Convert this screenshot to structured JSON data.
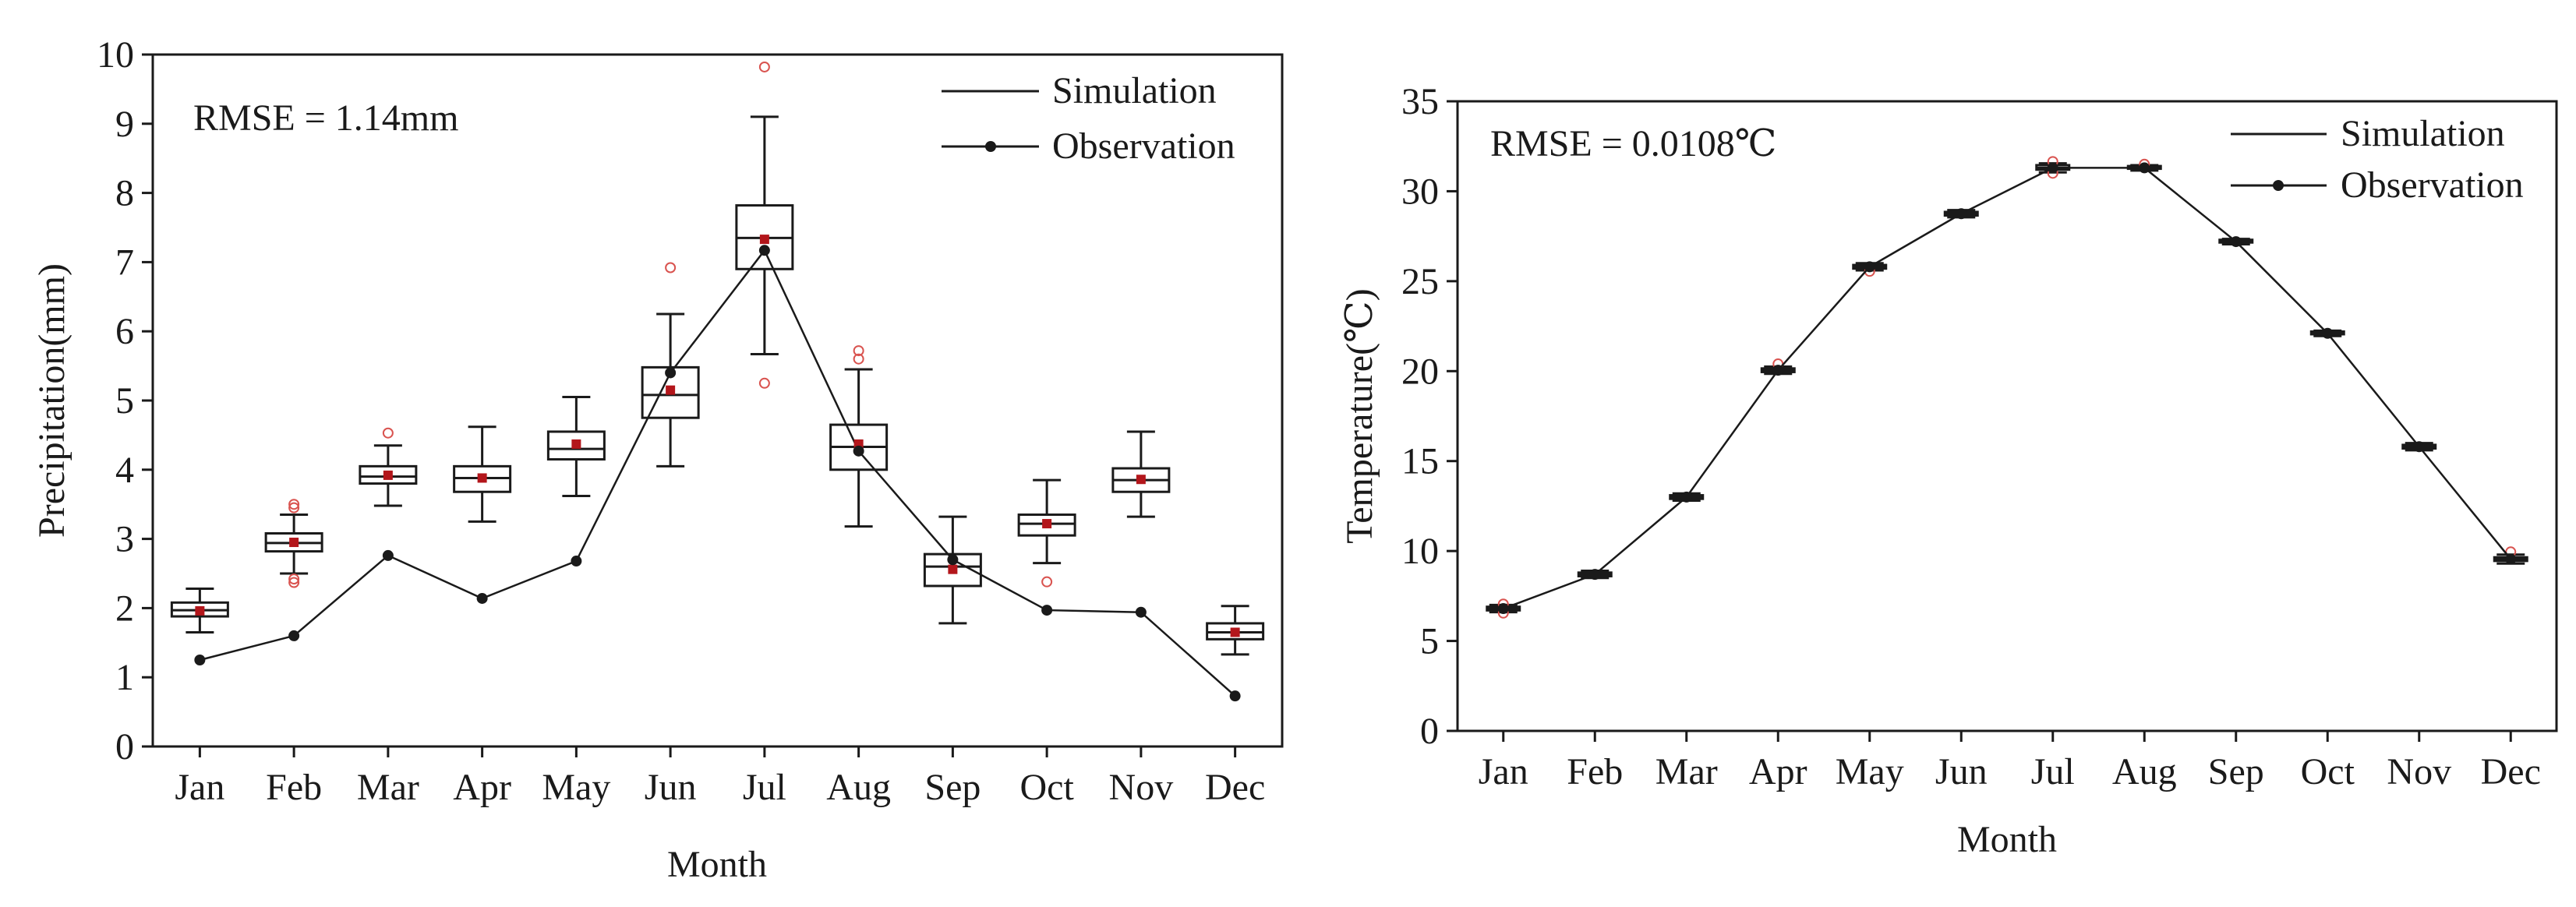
{
  "chart_data": [
    {
      "type": "box",
      "xlabel": "Month",
      "ylabel": "Precipitation(mm)",
      "ylim": [
        0,
        10
      ],
      "yticks": [
        0,
        1,
        2,
        3,
        4,
        5,
        6,
        7,
        8,
        9,
        10
      ],
      "categories": [
        "Jan",
        "Feb",
        "Mar",
        "Apr",
        "May",
        "Jun",
        "Jul",
        "Aug",
        "Sep",
        "Oct",
        "Nov",
        "Dec"
      ],
      "annotation": "RMSE = 1.14mm",
      "legend": {
        "position": "top-right",
        "entries": [
          {
            "label": "Simulation",
            "marker": "line"
          },
          {
            "label": "Observation",
            "marker": "line-dot"
          }
        ]
      },
      "simulation_boxes": [
        {
          "min": 1.65,
          "q1": 1.88,
          "median": 1.97,
          "q3": 2.08,
          "max": 2.28,
          "mean": 1.96,
          "outliers": []
        },
        {
          "min": 2.5,
          "q1": 2.82,
          "median": 2.94,
          "q3": 3.08,
          "max": 3.35,
          "mean": 2.95,
          "outliers": [
            3.5,
            3.45,
            2.42,
            2.37
          ]
        },
        {
          "min": 3.48,
          "q1": 3.8,
          "median": 3.9,
          "q3": 4.05,
          "max": 4.35,
          "mean": 3.92,
          "outliers": [
            4.53
          ]
        },
        {
          "min": 3.25,
          "q1": 3.68,
          "median": 3.88,
          "q3": 4.05,
          "max": 4.62,
          "mean": 3.88,
          "outliers": []
        },
        {
          "min": 3.62,
          "q1": 4.15,
          "median": 4.3,
          "q3": 4.55,
          "max": 5.05,
          "mean": 4.37,
          "outliers": []
        },
        {
          "min": 4.05,
          "q1": 4.75,
          "median": 5.08,
          "q3": 5.48,
          "max": 6.25,
          "mean": 5.15,
          "outliers": [
            6.92
          ]
        },
        {
          "min": 5.67,
          "q1": 6.9,
          "median": 7.35,
          "q3": 7.82,
          "max": 9.1,
          "mean": 7.33,
          "outliers": [
            9.82,
            5.25
          ]
        },
        {
          "min": 3.18,
          "q1": 4.0,
          "median": 4.33,
          "q3": 4.65,
          "max": 5.45,
          "mean": 4.37,
          "outliers": [
            5.72,
            5.6
          ]
        },
        {
          "min": 1.78,
          "q1": 2.32,
          "median": 2.6,
          "q3": 2.78,
          "max": 3.32,
          "mean": 2.56,
          "outliers": []
        },
        {
          "min": 2.65,
          "q1": 3.05,
          "median": 3.22,
          "q3": 3.35,
          "max": 3.85,
          "mean": 3.22,
          "outliers": [
            2.38
          ]
        },
        {
          "min": 3.32,
          "q1": 3.68,
          "median": 3.85,
          "q3": 4.02,
          "max": 4.55,
          "mean": 3.86,
          "outliers": []
        },
        {
          "min": 1.33,
          "q1": 1.55,
          "median": 1.65,
          "q3": 1.78,
          "max": 2.03,
          "mean": 1.65,
          "outliers": []
        }
      ],
      "observation": [
        1.25,
        1.6,
        2.76,
        2.14,
        2.68,
        5.4,
        7.17,
        4.27,
        2.7,
        1.97,
        1.94,
        0.73
      ]
    },
    {
      "type": "box",
      "xlabel": "Month",
      "ylabel": "Temperature(℃)",
      "ylim": [
        0,
        35
      ],
      "yticks": [
        0,
        5,
        10,
        15,
        20,
        25,
        30,
        35
      ],
      "categories": [
        "Jan",
        "Feb",
        "Mar",
        "Apr",
        "May",
        "Jun",
        "Jul",
        "Aug",
        "Sep",
        "Oct",
        "Nov",
        "Dec"
      ],
      "annotation": "RMSE = 0.0108℃",
      "legend": {
        "position": "top-right",
        "entries": [
          {
            "label": "Simulation",
            "marker": "line"
          },
          {
            "label": "Observation",
            "marker": "line-dot"
          }
        ]
      },
      "simulation_boxes": [
        {
          "min": 6.6,
          "q1": 6.7,
          "median": 6.8,
          "q3": 6.9,
          "max": 7.0,
          "mean": 6.8,
          "outliers": [
            6.55,
            7.05
          ]
        },
        {
          "min": 8.5,
          "q1": 8.6,
          "median": 8.7,
          "q3": 8.8,
          "max": 8.9,
          "mean": 8.7,
          "outliers": []
        },
        {
          "min": 12.8,
          "q1": 12.9,
          "median": 13.0,
          "q3": 13.1,
          "max": 13.2,
          "mean": 13.0,
          "outliers": []
        },
        {
          "min": 19.85,
          "q1": 19.95,
          "median": 20.05,
          "q3": 20.15,
          "max": 20.25,
          "mean": 20.05,
          "outliers": [
            20.4
          ]
        },
        {
          "min": 25.6,
          "q1": 25.7,
          "median": 25.8,
          "q3": 25.9,
          "max": 26.0,
          "mean": 25.8,
          "outliers": [
            25.55
          ]
        },
        {
          "min": 28.55,
          "q1": 28.65,
          "median": 28.75,
          "q3": 28.85,
          "max": 28.95,
          "mean": 28.75,
          "outliers": []
        },
        {
          "min": 31.05,
          "q1": 31.2,
          "median": 31.3,
          "q3": 31.45,
          "max": 31.55,
          "mean": 31.3,
          "outliers": [
            31.0,
            31.65
          ]
        },
        {
          "min": 31.15,
          "q1": 31.25,
          "median": 31.3,
          "q3": 31.4,
          "max": 31.45,
          "mean": 31.3,
          "outliers": [
            31.5
          ]
        },
        {
          "min": 27.05,
          "q1": 27.15,
          "median": 27.2,
          "q3": 27.3,
          "max": 27.35,
          "mean": 27.2,
          "outliers": []
        },
        {
          "min": 21.95,
          "q1": 22.05,
          "median": 22.1,
          "q3": 22.2,
          "max": 22.25,
          "mean": 22.1,
          "outliers": []
        },
        {
          "min": 15.6,
          "q1": 15.7,
          "median": 15.8,
          "q3": 15.9,
          "max": 16.0,
          "mean": 15.8,
          "outliers": []
        },
        {
          "min": 9.3,
          "q1": 9.45,
          "median": 9.55,
          "q3": 9.65,
          "max": 9.8,
          "mean": 9.55,
          "outliers": [
            9.95
          ]
        }
      ],
      "observation": [
        6.8,
        8.7,
        13.0,
        20.05,
        25.8,
        28.75,
        31.3,
        31.3,
        27.2,
        22.1,
        15.8,
        9.55
      ]
    }
  ],
  "colors": {
    "axis": "#1a1a1a",
    "box": "#1a1a1a",
    "observation_line": "#1a1a1a",
    "mean_marker": "#b3161b",
    "outlier": "#d9534f",
    "background": "#ffffff"
  }
}
